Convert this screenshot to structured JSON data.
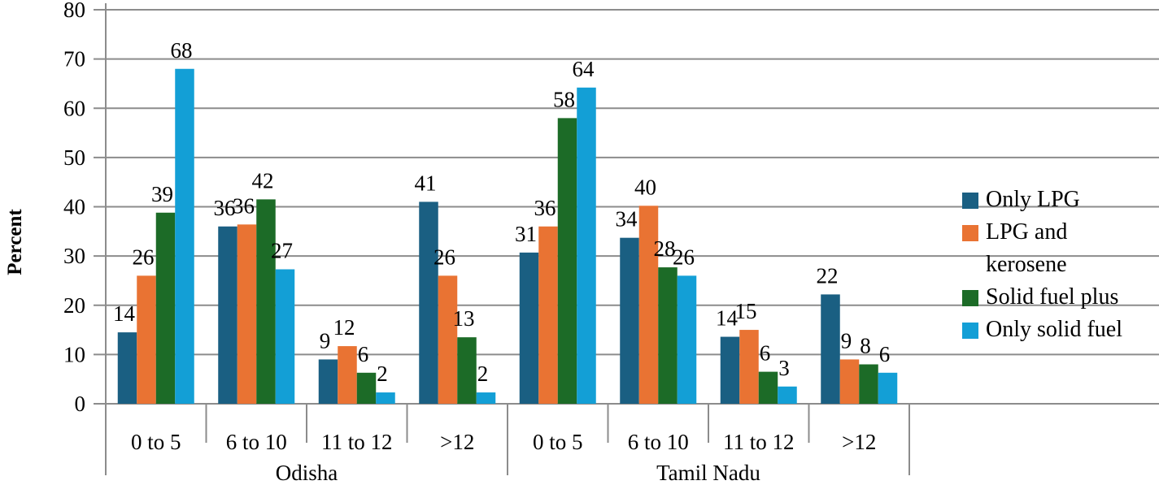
{
  "chart_data": {
    "type": "bar",
    "title": "",
    "xlabel": "",
    "ylabel": "Percent",
    "ylim": [
      0,
      80
    ],
    "yticks": [
      0,
      10,
      20,
      30,
      40,
      50,
      60,
      70,
      80
    ],
    "grid": true,
    "legend_position": "right",
    "groups": [
      "Odisha",
      "Tamil Nadu"
    ],
    "categories": [
      "0 to 5",
      "6 to 10",
      "11 to 12",
      ">12",
      "0 to 5",
      "6 to 10",
      "11 to 12",
      ">12"
    ],
    "category_groups": [
      "Odisha",
      "Odisha",
      "Odisha",
      "Odisha",
      "Tamil Nadu",
      "Tamil Nadu",
      "Tamil Nadu",
      "Tamil Nadu"
    ],
    "series": [
      {
        "name": "Only LPG",
        "color": "#1a5f82",
        "values": [
          14,
          36,
          9,
          41,
          31,
          34,
          14,
          22
        ],
        "heights": [
          14.5,
          36,
          9,
          41,
          30.7,
          33.7,
          13.6,
          22.2
        ]
      },
      {
        "name": "LPG and kerosene",
        "color": "#e97333",
        "values": [
          26,
          36,
          12,
          26,
          36,
          40,
          15,
          9
        ],
        "heights": [
          26,
          36.4,
          11.7,
          26,
          36,
          40.2,
          15,
          9
        ]
      },
      {
        "name": "Solid fuel plus",
        "color": "#1c6b27",
        "values": [
          39,
          42,
          6,
          13,
          58,
          28,
          6,
          8
        ],
        "heights": [
          38.8,
          41.5,
          6.3,
          13.5,
          58,
          27.7,
          6.5,
          8
        ]
      },
      {
        "name": "Only solid fuel",
        "color": "#139fd6",
        "values": [
          68,
          27,
          2,
          2,
          64,
          26,
          3,
          6
        ],
        "heights": [
          68,
          27.3,
          2.3,
          2.3,
          64.2,
          26,
          3.5,
          6.3
        ]
      }
    ]
  },
  "legend": {
    "items": [
      {
        "label": "Only LPG",
        "color": "#1a5f82"
      },
      {
        "label": "LPG and kerosene",
        "color": "#e97333"
      },
      {
        "label": "Solid fuel plus",
        "color": "#1c6b27"
      },
      {
        "label": "Only solid fuel",
        "color": "#139fd6"
      }
    ]
  }
}
